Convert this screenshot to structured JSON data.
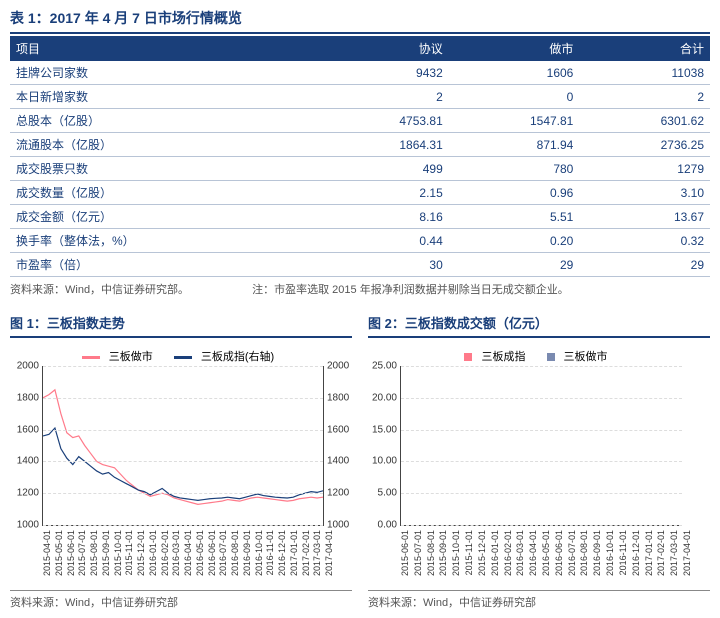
{
  "table": {
    "title": "表 1：2017 年 4 月 7 日市场行情概览",
    "cols": [
      "项目",
      "协议",
      "做市",
      "合计"
    ],
    "rows": [
      [
        "挂牌公司家数",
        "9432",
        "1606",
        "11038"
      ],
      [
        "本日新增家数",
        "2",
        "0",
        "2"
      ],
      [
        "总股本（亿股）",
        "4753.81",
        "1547.81",
        "6301.62"
      ],
      [
        "流通股本（亿股）",
        "1864.31",
        "871.94",
        "2736.25"
      ],
      [
        "成交股票只数",
        "499",
        "780",
        "1279"
      ],
      [
        "成交数量（亿股）",
        "2.15",
        "0.96",
        "3.10"
      ],
      [
        "成交金额（亿元）",
        "8.16",
        "5.51",
        "13.67"
      ],
      [
        "换手率（整体法，%）",
        "0.44",
        "0.20",
        "0.32"
      ],
      [
        "市盈率（倍）",
        "30",
        "29",
        "29"
      ]
    ],
    "src": "资料来源：Wind，中信证券研究部。",
    "note": "注：市盈率选取 2015 年报净利润数据并剔除当日无成交额企业。"
  },
  "chart1": {
    "title": "图 1：三板指数走势",
    "legend1": "三板做市",
    "legend2": "三板成指(右轴)",
    "ylim": [
      1000,
      2000
    ],
    "yticks": [
      1000,
      1200,
      1400,
      1600,
      1800,
      2000
    ],
    "pink": [
      1800,
      1820,
      1850,
      1700,
      1580,
      1550,
      1560,
      1500,
      1450,
      1400,
      1380,
      1370,
      1360,
      1320,
      1280,
      1250,
      1220,
      1200,
      1180,
      1190,
      1200,
      1190,
      1170,
      1160,
      1150,
      1140,
      1130,
      1135,
      1140,
      1145,
      1150,
      1160,
      1155,
      1150,
      1160,
      1170,
      1175,
      1170,
      1165,
      1160,
      1155,
      1150,
      1155,
      1165,
      1170,
      1175,
      1170,
      1175
    ],
    "navy": [
      1560,
      1570,
      1610,
      1480,
      1420,
      1380,
      1430,
      1400,
      1370,
      1340,
      1320,
      1330,
      1300,
      1280,
      1260,
      1240,
      1220,
      1210,
      1190,
      1210,
      1230,
      1200,
      1180,
      1170,
      1165,
      1160,
      1155,
      1160,
      1165,
      1168,
      1170,
      1175,
      1170,
      1165,
      1175,
      1185,
      1195,
      1185,
      1180,
      1175,
      1172,
      1170,
      1175,
      1190,
      1200,
      1210,
      1205,
      1215
    ],
    "xticks": [
      "2015-04-01",
      "2015-05-01",
      "2015-06-01",
      "2015-07-01",
      "2015-08-01",
      "2015-09-01",
      "2015-10-01",
      "2015-11-01",
      "2015-12-01",
      "2016-01-01",
      "2016-02-01",
      "2016-03-01",
      "2016-04-01",
      "2016-05-01",
      "2016-06-01",
      "2016-07-01",
      "2016-08-01",
      "2016-09-01",
      "2016-10-01",
      "2016-11-01",
      "2016-12-01",
      "2017-01-01",
      "2017-02-01",
      "2017-03-01",
      "2017-04-01"
    ],
    "src": "资料来源：Wind，中信证券研究部"
  },
  "chart2": {
    "title": "图 2：三板指数成交额（亿元）",
    "legend1": "三板成指",
    "legend2": "三板做市",
    "ylim": [
      0,
      25
    ],
    "yticks": [
      "0.00",
      "5.00",
      "10.00",
      "15.00",
      "20.00",
      "25.00"
    ],
    "pink": [
      2,
      3,
      4,
      5,
      3,
      4,
      3,
      2,
      3,
      2,
      4,
      6,
      3,
      5,
      7,
      4,
      6,
      5,
      3,
      4,
      5,
      6,
      4,
      8,
      10,
      6,
      5,
      7,
      9,
      6,
      8,
      18,
      7,
      9,
      6,
      8,
      10,
      7,
      6,
      9,
      8,
      11,
      7,
      9,
      14,
      8,
      10,
      7,
      6,
      12,
      8,
      10,
      9,
      11,
      8,
      10,
      13,
      9,
      11,
      8,
      10,
      9,
      12,
      10,
      13,
      9,
      11,
      10,
      9,
      12,
      10,
      9,
      11,
      10,
      13,
      11,
      14,
      10,
      12,
      9,
      11,
      10,
      13,
      11,
      9,
      12,
      10,
      11,
      13,
      10,
      12,
      11,
      10,
      13,
      11,
      12
    ],
    "navy": [
      1,
      1,
      2,
      2,
      1,
      2,
      1,
      1,
      1,
      1,
      2,
      3,
      1,
      2,
      3,
      2,
      2,
      2,
      1,
      2,
      2,
      2,
      2,
      3,
      4,
      2,
      2,
      3,
      3,
      2,
      3,
      6,
      3,
      3,
      2,
      3,
      4,
      3,
      2,
      3,
      3,
      4,
      3,
      3,
      5,
      3,
      4,
      3,
      2,
      4,
      3,
      4,
      3,
      4,
      3,
      3,
      5,
      3,
      4,
      3,
      3,
      3,
      4,
      3,
      5,
      3,
      4,
      3,
      3,
      4,
      3,
      3,
      4,
      3,
      5,
      4,
      5,
      3,
      4,
      3,
      4,
      3,
      5,
      4,
      3,
      4,
      3,
      4,
      5,
      3,
      4,
      4,
      3,
      5,
      4,
      4
    ],
    "xticks": [
      "2015-06-01",
      "2015-07-01",
      "2015-08-01",
      "2015-09-01",
      "2015-10-01",
      "2015-11-01",
      "2015-12-01",
      "2016-01-01",
      "2016-02-01",
      "2016-03-01",
      "2016-04-01",
      "2016-05-01",
      "2016-06-01",
      "2016-07-01",
      "2016-08-01",
      "2016-09-01",
      "2016-10-01",
      "2016-11-01",
      "2016-12-01",
      "2017-01-01",
      "2017-02-01",
      "2017-03-01",
      "2017-04-01"
    ],
    "src": "资料来源：Wind，中信证券研究部"
  },
  "colors": {
    "pink": "#ff7a8a",
    "navy": "#1a3f7a",
    "navylt": "#7a8ab0"
  }
}
